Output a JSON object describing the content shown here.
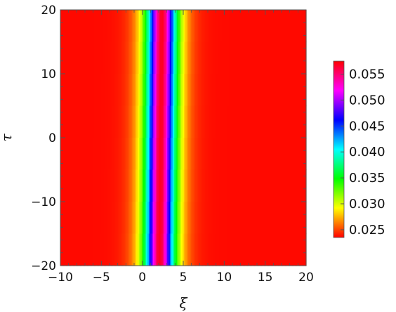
{
  "chart_data": {
    "type": "heatmap",
    "xlabel": "ξ",
    "ylabel": "τ",
    "xlim": [
      -10,
      20
    ],
    "ylim": [
      -20,
      20
    ],
    "x_ticks": [
      -10,
      -5,
      0,
      5,
      10,
      15,
      20
    ],
    "y_ticks": [
      -20,
      -10,
      0,
      10,
      20
    ],
    "x_tick_labels": [
      "−10",
      "−5",
      "0",
      "5",
      "10",
      "15",
      "20"
    ],
    "y_tick_labels": [
      "−20",
      "−10",
      "0",
      "10",
      "20"
    ],
    "colorbar": {
      "range": [
        0.0235,
        0.0575
      ],
      "ticks": [
        0.025,
        0.03,
        0.035,
        0.04,
        0.045,
        0.05,
        0.055
      ],
      "tick_labels": [
        "0.025",
        "0.030",
        "0.035",
        "0.040",
        "0.045",
        "0.050",
        "0.055"
      ],
      "colormap": [
        "#ff0000",
        "#ffff00",
        "#00ff00",
        "#00ffff",
        "#0000ff",
        "#ff00ff",
        "#ff0000"
      ]
    },
    "field": {
      "background": 0.0237,
      "peak": 0.0568,
      "peak_center_at_tau_minus20": 2.1,
      "peak_center_at_tau_20": 2.4,
      "width": 1.75
    }
  }
}
